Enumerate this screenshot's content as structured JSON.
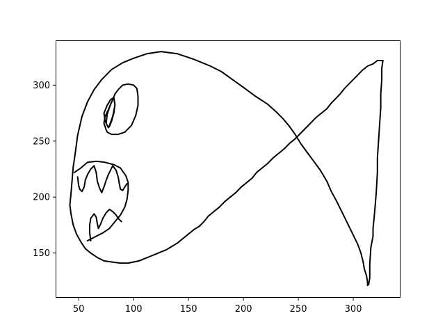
{
  "chart_data": {
    "type": "line",
    "title": "",
    "xlabel": "",
    "ylabel": "",
    "xlim": [
      29,
      343
    ],
    "ylim": [
      110,
      340
    ],
    "grid": false,
    "xticks": [
      50,
      100,
      150,
      200,
      250,
      300
    ],
    "yticks": [
      150,
      200,
      250,
      300
    ],
    "series": [
      {
        "stroke": "#000000",
        "points": [
          [
            327,
            322
          ],
          [
            322,
            322
          ],
          [
            318,
            319
          ],
          [
            313,
            317
          ],
          [
            308,
            313
          ],
          [
            304,
            309
          ],
          [
            300,
            305
          ],
          [
            296,
            301
          ],
          [
            292,
            297
          ],
          [
            288,
            292
          ],
          [
            284,
            288
          ],
          [
            280,
            284
          ],
          [
            276,
            279
          ],
          [
            271,
            275
          ],
          [
            266,
            271
          ],
          [
            262,
            267
          ],
          [
            257,
            262
          ],
          [
            252,
            257
          ],
          [
            247,
            252
          ],
          [
            242,
            248
          ],
          [
            237,
            243
          ],
          [
            232,
            239
          ],
          [
            227,
            235
          ],
          [
            222,
            230
          ],
          [
            217,
            226
          ],
          [
            212,
            222
          ],
          [
            208,
            217
          ],
          [
            203,
            213
          ],
          [
            198,
            209
          ],
          [
            193,
            204
          ],
          [
            188,
            200
          ],
          [
            183,
            196
          ],
          [
            178,
            191
          ],
          [
            173,
            187
          ],
          [
            168,
            183
          ],
          [
            164,
            178
          ],
          [
            160,
            174
          ],
          [
            155,
            171
          ],
          [
            150,
            167
          ],
          [
            145,
            163
          ],
          [
            140,
            159
          ],
          [
            135,
            156
          ],
          [
            130,
            153
          ],
          [
            125,
            151
          ],
          [
            120,
            149
          ],
          [
            115,
            147
          ],
          [
            110,
            145
          ],
          [
            105,
            143
          ],
          [
            100,
            142
          ],
          [
            95,
            141
          ],
          [
            88,
            141
          ],
          [
            80,
            142
          ],
          [
            73,
            143
          ],
          [
            67,
            146
          ],
          [
            61,
            150
          ],
          [
            56,
            154
          ],
          [
            52,
            160
          ],
          [
            48,
            167
          ],
          [
            45,
            175
          ],
          [
            43,
            185
          ],
          [
            42,
            193
          ],
          [
            43,
            203
          ],
          [
            44,
            215
          ],
          [
            45,
            227
          ],
          [
            47,
            240
          ],
          [
            49,
            255
          ],
          [
            53,
            272
          ],
          [
            58,
            285
          ],
          [
            64,
            296
          ],
          [
            71,
            305
          ],
          [
            80,
            314
          ],
          [
            90,
            320
          ],
          [
            100,
            324
          ],
          [
            112,
            328
          ],
          [
            125,
            330
          ],
          [
            140,
            328
          ],
          [
            155,
            323
          ],
          [
            170,
            317
          ],
          [
            180,
            312
          ],
          [
            190,
            305
          ],
          [
            200,
            298
          ],
          [
            211,
            290
          ],
          [
            222,
            283
          ],
          [
            230,
            276
          ],
          [
            236,
            270
          ],
          [
            242,
            263
          ],
          [
            247,
            256
          ],
          [
            252,
            248
          ],
          [
            258,
            240
          ],
          [
            264,
            232
          ],
          [
            270,
            224
          ],
          [
            276,
            214
          ],
          [
            280,
            205
          ],
          [
            285,
            196
          ],
          [
            290,
            186
          ],
          [
            295,
            176
          ],
          [
            300,
            166
          ],
          [
            304,
            158
          ],
          [
            307,
            150
          ],
          [
            309,
            142
          ],
          [
            310,
            136
          ],
          [
            312,
            130
          ],
          [
            313,
            124
          ],
          [
            313,
            121
          ],
          [
            314,
            122
          ],
          [
            315,
            128
          ],
          [
            315,
            140
          ],
          [
            316,
            155
          ],
          [
            318,
            165
          ],
          [
            318,
            172
          ],
          [
            319,
            182
          ],
          [
            320,
            193
          ],
          [
            321,
            205
          ],
          [
            322,
            222
          ],
          [
            322,
            235
          ],
          [
            323,
            250
          ],
          [
            324,
            265
          ],
          [
            325,
            280
          ],
          [
            325,
            292
          ],
          [
            326,
            305
          ],
          [
            326,
            315
          ],
          [
            327,
            322
          ]
        ]
      },
      {
        "stroke": "#000000",
        "points": [
          [
            75,
            260
          ],
          [
            73,
            266
          ],
          [
            74,
            272
          ],
          [
            77,
            278
          ],
          [
            80,
            285
          ],
          [
            83,
            292
          ],
          [
            86,
            296
          ],
          [
            90,
            300
          ],
          [
            95,
            301
          ],
          [
            100,
            300
          ],
          [
            103,
            297
          ],
          [
            104,
            290
          ],
          [
            104,
            282
          ],
          [
            102,
            273
          ],
          [
            98,
            264
          ],
          [
            92,
            258
          ],
          [
            86,
            256
          ],
          [
            80,
            256
          ],
          [
            76,
            258
          ],
          [
            75,
            260
          ]
        ]
      },
      {
        "stroke": "#000000",
        "points": [
          [
            77,
            262
          ],
          [
            74,
            268
          ],
          [
            73,
            275
          ],
          [
            76,
            282
          ],
          [
            79,
            287
          ],
          [
            82,
            289
          ],
          [
            83,
            283
          ],
          [
            82,
            275
          ],
          [
            80,
            268
          ],
          [
            78,
            263
          ],
          [
            77,
            262
          ],
          [
            75,
            266
          ],
          [
            76,
            274
          ],
          [
            79,
            283
          ],
          [
            82,
            289
          ],
          [
            83,
            282
          ],
          [
            81,
            272
          ],
          [
            78,
            264
          ],
          [
            77,
            262
          ]
        ]
      },
      {
        "stroke": "#000000",
        "points": [
          [
            46,
            222
          ],
          [
            52,
            226
          ],
          [
            58,
            231
          ],
          [
            66,
            232
          ],
          [
            74,
            231
          ],
          [
            82,
            229
          ],
          [
            88,
            226
          ],
          [
            93,
            219
          ],
          [
            95,
            213
          ],
          [
            95,
            206
          ],
          [
            94,
            198
          ],
          [
            92,
            191
          ],
          [
            88,
            184
          ],
          [
            83,
            178
          ],
          [
            78,
            172
          ],
          [
            72,
            168
          ],
          [
            64,
            164
          ],
          [
            58,
            161
          ]
        ]
      },
      {
        "stroke": "#000000",
        "points": [
          [
            49,
            218
          ],
          [
            50,
            210
          ],
          [
            51,
            207
          ],
          [
            53,
            205
          ],
          [
            55,
            209
          ],
          [
            56,
            215
          ],
          [
            58,
            220
          ],
          [
            61,
            225
          ],
          [
            64,
            228
          ],
          [
            66,
            222
          ],
          [
            67,
            214
          ],
          [
            69,
            208
          ],
          [
            71,
            204
          ],
          [
            73,
            209
          ],
          [
            75,
            215
          ],
          [
            77,
            220
          ],
          [
            79,
            224
          ],
          [
            81,
            228
          ],
          [
            84,
            224
          ],
          [
            86,
            218
          ],
          [
            87,
            212
          ],
          [
            88,
            207
          ],
          [
            90,
            206
          ],
          [
            92,
            209
          ],
          [
            94,
            212
          ]
        ]
      },
      {
        "stroke": "#000000",
        "points": [
          [
            61,
            161
          ],
          [
            60,
            168
          ],
          [
            60,
            175
          ],
          [
            61,
            181
          ],
          [
            64,
            185
          ],
          [
            66,
            182
          ],
          [
            67,
            176
          ],
          [
            68,
            172
          ],
          [
            70,
            176
          ],
          [
            72,
            181
          ],
          [
            75,
            186
          ],
          [
            78,
            189
          ],
          [
            81,
            187
          ],
          [
            84,
            184
          ],
          [
            86,
            181
          ],
          [
            89,
            178
          ]
        ]
      }
    ]
  }
}
